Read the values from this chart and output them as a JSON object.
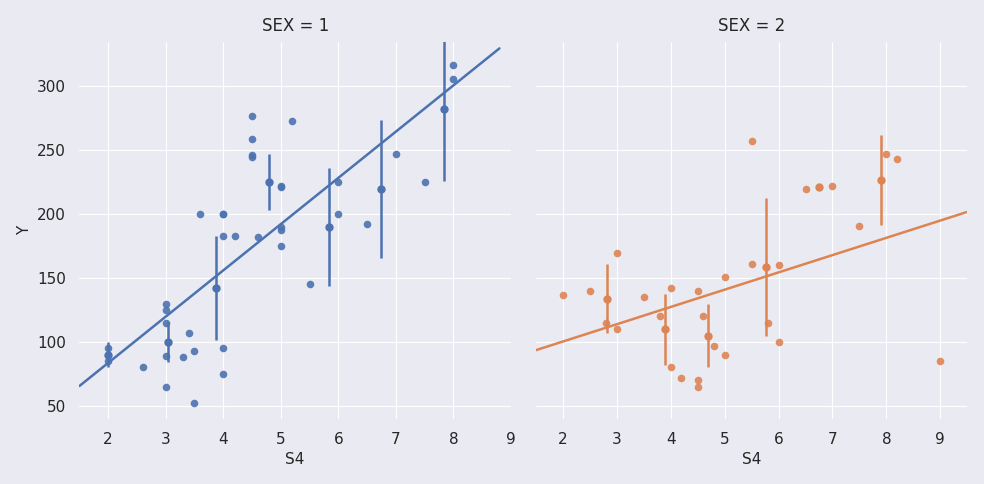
{
  "sex1_s4": [
    2.0,
    2.0,
    2.6,
    3.0,
    3.0,
    3.0,
    3.0,
    3.0,
    3.3,
    3.4,
    3.5,
    3.5,
    3.6,
    4.0,
    4.0,
    4.0,
    4.0,
    4.0,
    4.2,
    4.5,
    4.5,
    4.5,
    4.5,
    4.6,
    5.0,
    5.0,
    5.0,
    5.0,
    5.0,
    5.2,
    5.5,
    6.0,
    6.0,
    6.5,
    7.0,
    7.5,
    8.0,
    8.0
  ],
  "sex1_y": [
    95,
    85,
    80,
    130,
    125,
    89,
    65,
    115,
    88,
    107,
    52,
    93,
    200,
    183,
    200,
    95,
    75,
    200,
    183,
    246,
    277,
    259,
    245,
    182,
    221,
    222,
    190,
    188,
    175,
    273,
    145,
    200,
    225,
    192,
    247,
    225,
    317,
    306
  ],
  "sex2_s4": [
    2.0,
    2.5,
    2.8,
    3.0,
    3.0,
    3.5,
    3.8,
    4.0,
    4.0,
    4.2,
    4.5,
    4.5,
    4.5,
    4.6,
    4.8,
    5.0,
    5.0,
    5.5,
    5.5,
    5.8,
    6.0,
    6.0,
    6.5,
    7.0,
    7.5,
    8.0,
    8.2,
    9.0
  ],
  "sex2_y": [
    137,
    140,
    115,
    110,
    170,
    135,
    120,
    142,
    80,
    72,
    140,
    65,
    70,
    120,
    97,
    151,
    90,
    257,
    161,
    115,
    160,
    100,
    220,
    222,
    191,
    247,
    243,
    85
  ],
  "color1": "#4C72B0",
  "color2": "#DD8452",
  "bg_color": "#EAEAF2",
  "title1": "SEX = 1",
  "title2": "SEX = 2",
  "xlabel": "S4",
  "ylabel": "Y",
  "ylim": [
    40,
    335
  ],
  "yticks": [
    50,
    100,
    150,
    200,
    250,
    300
  ],
  "xticks": [
    2,
    3,
    4,
    5,
    6,
    7,
    8,
    9
  ],
  "xlim1": [
    1.5,
    8.8
  ],
  "xlim2": [
    1.5,
    9.5
  ],
  "scatter_size": 30,
  "scatter_alpha": 0.9,
  "line_width": 1.8,
  "errorbar_lw": 1.8,
  "errorbar_ms": 5,
  "title_fontsize": 12,
  "label_fontsize": 11
}
